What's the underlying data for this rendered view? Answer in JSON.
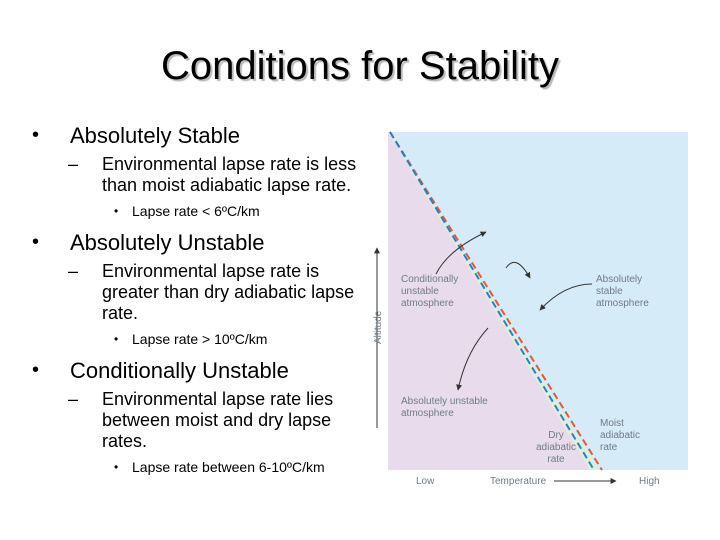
{
  "slide": {
    "title": "Conditions for Stability"
  },
  "bullets": [
    {
      "label": "Absolutely Stable",
      "sub": "Environmental lapse rate is less than moist adiabatic lapse rate.",
      "detail": "Lapse rate < 6ºC/km"
    },
    {
      "label": "Absolutely Unstable",
      "sub": "Environmental lapse rate is greater than dry adiabatic lapse rate.",
      "detail": "Lapse rate > 10ºC/km"
    },
    {
      "label": "Conditionally Unstable",
      "sub": "Environmental lapse rate lies between moist and dry lapse rates.",
      "detail": "Lapse rate between 6-10ºC/km"
    }
  ],
  "diagram": {
    "colors": {
      "stable": "#d5ebf7",
      "conditional": "#dff0d8",
      "unstable": "#e8dcec",
      "dry_line": "#e05a3a",
      "moist_line": "#2f7fc0",
      "arrow": "#333333"
    },
    "region_labels": {
      "conditional": [
        "Conditionally",
        "unstable",
        "atmosphere"
      ],
      "stable": [
        "Absolutely",
        "stable",
        "atmosphere"
      ],
      "unstable": [
        "Absolutely unstable",
        "atmosphere"
      ]
    },
    "line_labels": {
      "dry": [
        "Dry",
        "adiabatic",
        "rate"
      ],
      "moist": [
        "Moist",
        "adiabatic",
        "rate"
      ]
    },
    "axis": {
      "y_label": "Altitude",
      "x_low": "Low",
      "x_label": "Temperature",
      "x_high": "High"
    }
  }
}
